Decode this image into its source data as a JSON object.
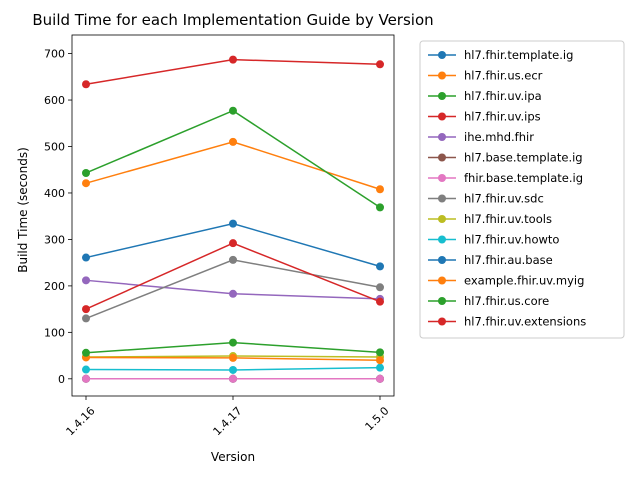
{
  "chart_data": {
    "type": "line",
    "title": "Build Time for each Implementation Guide by Version",
    "xlabel": "Version",
    "ylabel": "Build Time (seconds)",
    "categories": [
      "1.4.16",
      "1.4.17",
      "1.5.0"
    ],
    "ylim": [
      -37,
      740
    ],
    "yticks": [
      0,
      100,
      200,
      300,
      400,
      500,
      600,
      700
    ],
    "grid": false,
    "legend_position": "outside-right",
    "series": [
      {
        "name": "hl7.fhir.template.ig",
        "color": "#1f77b4",
        "values": [
          0,
          0,
          0
        ]
      },
      {
        "name": "hl7.fhir.us.ecr",
        "color": "#ff7f0e",
        "values": [
          421,
          510,
          408
        ]
      },
      {
        "name": "hl7.fhir.uv.ipa",
        "color": "#2ca02c",
        "values": [
          443,
          577,
          369
        ]
      },
      {
        "name": "hl7.fhir.uv.ips",
        "color": "#d62728",
        "values": [
          634,
          687,
          677
        ]
      },
      {
        "name": "ihe.mhd.fhir",
        "color": "#9467bd",
        "values": [
          212,
          183,
          172
        ]
      },
      {
        "name": "hl7.base.template.ig",
        "color": "#8c564b",
        "values": [
          0,
          0,
          0
        ]
      },
      {
        "name": "fhir.base.template.ig",
        "color": "#e377c2",
        "values": [
          0,
          0,
          0
        ]
      },
      {
        "name": "hl7.fhir.uv.sdc",
        "color": "#7f7f7f",
        "values": [
          130,
          256,
          197
        ]
      },
      {
        "name": "hl7.fhir.uv.tools",
        "color": "#bcbd22",
        "values": [
          47,
          49,
          47
        ]
      },
      {
        "name": "hl7.fhir.uv.howto",
        "color": "#17becf",
        "values": [
          20,
          19,
          24
        ]
      },
      {
        "name": "hl7.fhir.au.base",
        "color": "#1f77b4",
        "values": [
          261,
          334,
          242
        ]
      },
      {
        "name": "example.fhir.uv.myig",
        "color": "#ff7f0e",
        "values": [
          46,
          45,
          40
        ]
      },
      {
        "name": "hl7.fhir.us.core",
        "color": "#2ca02c",
        "values": [
          56,
          78,
          57
        ]
      },
      {
        "name": "hl7.fhir.uv.extensions",
        "color": "#d62728",
        "values": [
          150,
          292,
          166
        ]
      }
    ]
  }
}
